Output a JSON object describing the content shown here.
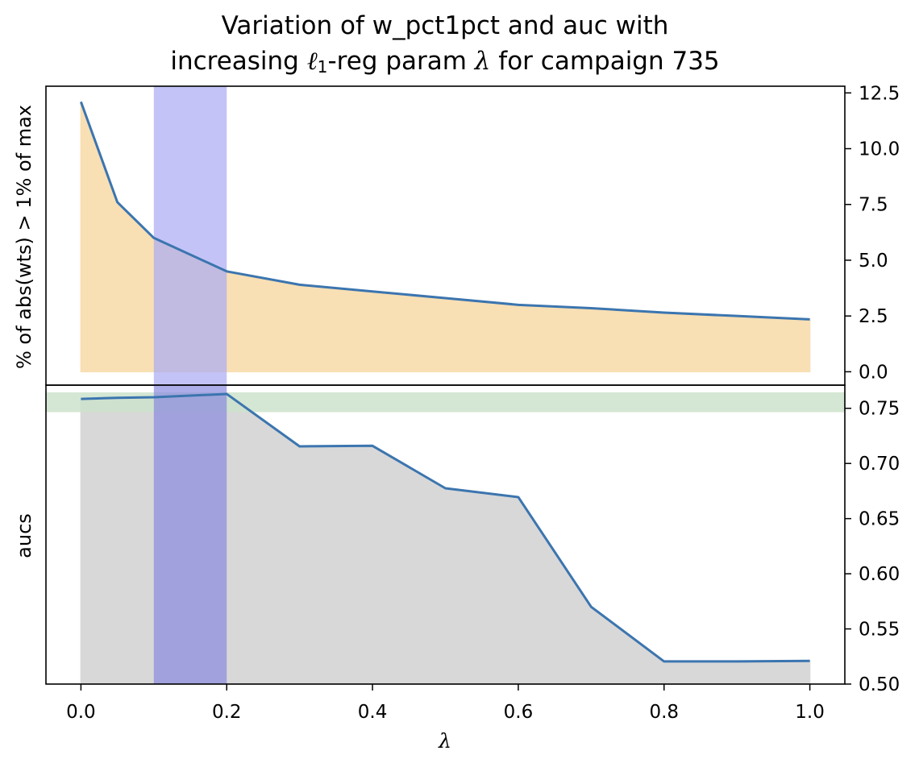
{
  "title": {
    "line1": "Variation of w_pct1pct and auc with",
    "line2_prefix": "increasing ",
    "line2_ell": "ℓ",
    "line2_sub": "1",
    "line2_mid": "-reg param ",
    "line2_lambda": "λ",
    "line2_suffix": " for campaign 735"
  },
  "chart_data": [
    {
      "type": "area",
      "ylabel": "% of abs(wts) > 1% of max",
      "yaxis_side": "right",
      "ylim": [
        -0.6,
        12.8
      ],
      "ytick_values": [
        0.0,
        2.5,
        5.0,
        7.5,
        10.0,
        12.5
      ],
      "ytick_labels": [
        "0.0",
        "2.5",
        "5.0",
        "7.5",
        "10.0",
        "12.5"
      ],
      "x": [
        0.0,
        0.05,
        0.1,
        0.2,
        0.3,
        0.4,
        0.5,
        0.6,
        0.7,
        0.8,
        0.9,
        1.0
      ],
      "values": [
        12.1,
        7.6,
        6.0,
        4.5,
        3.9,
        3.6,
        3.3,
        3.0,
        2.85,
        2.65,
        2.5,
        2.35
      ],
      "line_color": "#3b75af",
      "fill_color": "#f8dfb4",
      "highlight_band": {
        "axis": "x",
        "range": [
          0.1,
          0.2
        ],
        "color": "#aaaaf4"
      },
      "grid": false
    },
    {
      "type": "area",
      "ylabel": "aucs",
      "xlabel": "λ",
      "yaxis_side": "right",
      "ylim": [
        0.5,
        0.771
      ],
      "ytick_values": [
        0.5,
        0.55,
        0.6,
        0.65,
        0.7,
        0.75
      ],
      "ytick_labels": [
        "0.50",
        "0.55",
        "0.60",
        "0.65",
        "0.70",
        "0.75"
      ],
      "xlim": [
        -0.048,
        1.048
      ],
      "xtick_values": [
        0.0,
        0.2,
        0.4,
        0.6,
        0.8,
        1.0
      ],
      "xtick_labels": [
        "0.0",
        "0.2",
        "0.4",
        "0.6",
        "0.8",
        "1.0"
      ],
      "x": [
        0.0,
        0.05,
        0.1,
        0.2,
        0.3,
        0.4,
        0.5,
        0.6,
        0.7,
        0.8,
        0.9,
        1.0
      ],
      "values": [
        0.7585,
        0.7595,
        0.76,
        0.763,
        0.7155,
        0.716,
        0.6775,
        0.6695,
        0.57,
        0.5205,
        0.5205,
        0.521
      ],
      "line_color": "#3b75af",
      "fill_color": "#d8d8d8",
      "highlight_band": {
        "axis": "x",
        "range": [
          0.1,
          0.2
        ],
        "color": "#8a8adf"
      },
      "reference_band": {
        "axis": "y",
        "range": [
          0.7465,
          0.7645
        ],
        "color": "#cde3cd"
      },
      "grid": false
    }
  ]
}
